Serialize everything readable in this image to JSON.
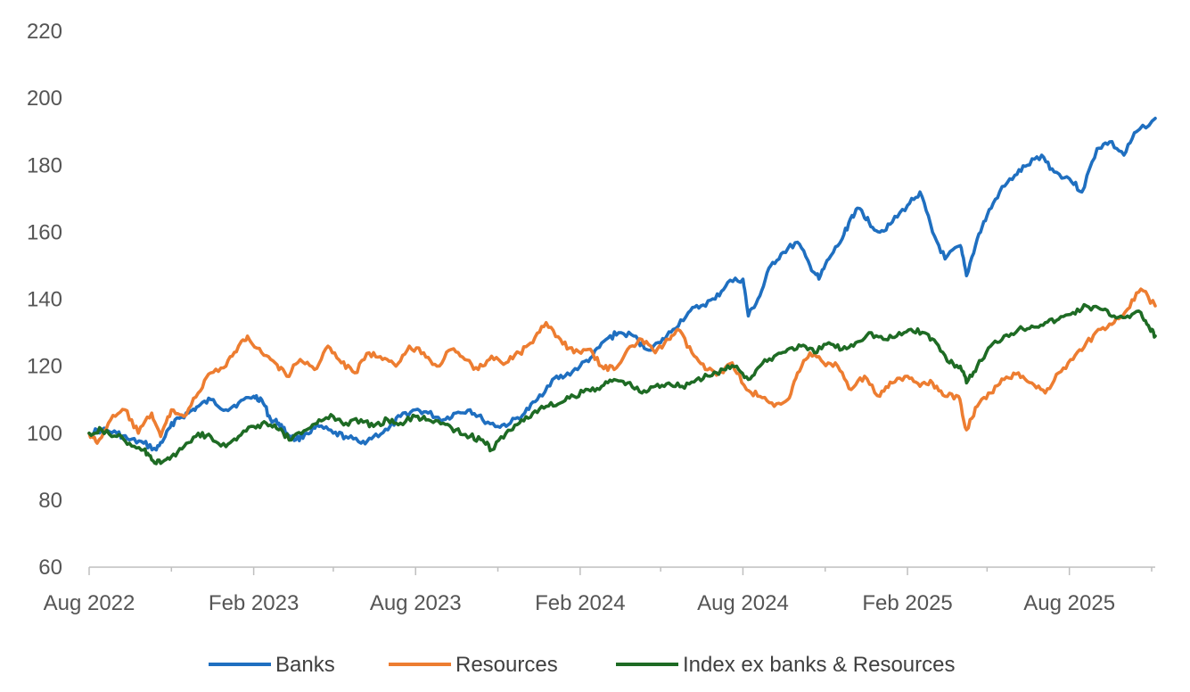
{
  "chart_data": {
    "type": "line",
    "title": "",
    "xlabel": "",
    "ylabel": "",
    "ylim": [
      60,
      220
    ],
    "yticks": [
      60,
      80,
      100,
      120,
      140,
      160,
      180,
      200,
      220
    ],
    "xlim": [
      "2022-08-01",
      "2025-11-05"
    ],
    "xticks": [
      {
        "date": "2022-08-01",
        "label": "Aug 2022"
      },
      {
        "date": "2023-02-01",
        "label": "Feb 2023"
      },
      {
        "date": "2023-08-01",
        "label": "Aug 2023"
      },
      {
        "date": "2024-02-01",
        "label": "Feb 2024"
      },
      {
        "date": "2024-08-01",
        "label": "Aug 2024"
      },
      {
        "date": "2025-02-01",
        "label": "Feb 2025"
      },
      {
        "date": "2025-08-01",
        "label": "Aug 2025"
      }
    ],
    "minor_ticks": [
      "2022-11-01",
      "2023-05-01",
      "2023-11-01",
      "2024-05-01",
      "2024-11-01",
      "2025-05-01",
      "2025-11-01"
    ],
    "grid": false,
    "legend_position": "bottom",
    "series": [
      {
        "name": "Banks",
        "color": "#1f6fc0",
        "points": [
          [
            "2022-08-01",
            100
          ],
          [
            "2022-08-15",
            101
          ],
          [
            "2022-09-01",
            100
          ],
          [
            "2022-09-15",
            98
          ],
          [
            "2022-10-01",
            97
          ],
          [
            "2022-10-15",
            95
          ],
          [
            "2022-10-25",
            99
          ],
          [
            "2022-11-05",
            104
          ],
          [
            "2022-11-20",
            106
          ],
          [
            "2022-12-01",
            108
          ],
          [
            "2022-12-15",
            110
          ],
          [
            "2023-01-01",
            107
          ],
          [
            "2023-01-15",
            109
          ],
          [
            "2023-02-01",
            111
          ],
          [
            "2023-02-10",
            110
          ],
          [
            "2023-02-20",
            104
          ],
          [
            "2023-03-01",
            103
          ],
          [
            "2023-03-10",
            100
          ],
          [
            "2023-03-20",
            98
          ],
          [
            "2023-04-01",
            100
          ],
          [
            "2023-04-15",
            102
          ],
          [
            "2023-05-01",
            100
          ],
          [
            "2023-05-15",
            99
          ],
          [
            "2023-06-01",
            97
          ],
          [
            "2023-06-15",
            99
          ],
          [
            "2023-07-01",
            101
          ],
          [
            "2023-07-15",
            105
          ],
          [
            "2023-08-01",
            107
          ],
          [
            "2023-08-15",
            106
          ],
          [
            "2023-09-01",
            104
          ],
          [
            "2023-09-15",
            106
          ],
          [
            "2023-10-01",
            107
          ],
          [
            "2023-10-15",
            104
          ],
          [
            "2023-11-01",
            102
          ],
          [
            "2023-11-15",
            103
          ],
          [
            "2023-12-01",
            106
          ],
          [
            "2023-12-15",
            110
          ],
          [
            "2024-01-01",
            116
          ],
          [
            "2024-01-15",
            117
          ],
          [
            "2024-02-01",
            120
          ],
          [
            "2024-02-15",
            123
          ],
          [
            "2024-03-01",
            128
          ],
          [
            "2024-03-15",
            130
          ],
          [
            "2024-04-01",
            129
          ],
          [
            "2024-04-15",
            125
          ],
          [
            "2024-05-01",
            127
          ],
          [
            "2024-05-15",
            131
          ],
          [
            "2024-06-01",
            136
          ],
          [
            "2024-06-15",
            138
          ],
          [
            "2024-07-01",
            140
          ],
          [
            "2024-07-15",
            145
          ],
          [
            "2024-08-01",
            146
          ],
          [
            "2024-08-07",
            135
          ],
          [
            "2024-08-20",
            141
          ],
          [
            "2024-09-01",
            150
          ],
          [
            "2024-09-15",
            154
          ],
          [
            "2024-10-01",
            157
          ],
          [
            "2024-10-15",
            150
          ],
          [
            "2024-10-25",
            146
          ],
          [
            "2024-11-05",
            152
          ],
          [
            "2024-11-20",
            158
          ],
          [
            "2024-12-01",
            165
          ],
          [
            "2024-12-10",
            167
          ],
          [
            "2024-12-20",
            163
          ],
          [
            "2025-01-01",
            160
          ],
          [
            "2025-01-15",
            163
          ],
          [
            "2025-02-01",
            168
          ],
          [
            "2025-02-15",
            172
          ],
          [
            "2025-03-01",
            160
          ],
          [
            "2025-03-15",
            152
          ],
          [
            "2025-04-01",
            156
          ],
          [
            "2025-04-08",
            147
          ],
          [
            "2025-04-20",
            158
          ],
          [
            "2025-05-01",
            165
          ],
          [
            "2025-05-15",
            172
          ],
          [
            "2025-06-01",
            177
          ],
          [
            "2025-06-15",
            180
          ],
          [
            "2025-07-01",
            183
          ],
          [
            "2025-07-15",
            178
          ],
          [
            "2025-08-01",
            176
          ],
          [
            "2025-08-15",
            172
          ],
          [
            "2025-09-01",
            185
          ],
          [
            "2025-09-15",
            187
          ],
          [
            "2025-10-01",
            183
          ],
          [
            "2025-10-15",
            190
          ],
          [
            "2025-11-05",
            194
          ]
        ]
      },
      {
        "name": "Resources",
        "color": "#ed7d31",
        "points": [
          [
            "2022-08-01",
            100
          ],
          [
            "2022-08-10",
            97
          ],
          [
            "2022-08-25",
            104
          ],
          [
            "2022-09-10",
            107
          ],
          [
            "2022-09-25",
            100
          ],
          [
            "2022-10-10",
            106
          ],
          [
            "2022-10-20",
            99
          ],
          [
            "2022-11-01",
            107
          ],
          [
            "2022-11-15",
            105
          ],
          [
            "2022-12-01",
            112
          ],
          [
            "2022-12-15",
            118
          ],
          [
            "2023-01-01",
            120
          ],
          [
            "2023-01-15",
            126
          ],
          [
            "2023-01-25",
            129
          ],
          [
            "2023-02-10",
            124
          ],
          [
            "2023-02-25",
            121
          ],
          [
            "2023-03-10",
            117
          ],
          [
            "2023-03-25",
            122
          ],
          [
            "2023-04-10",
            119
          ],
          [
            "2023-04-25",
            126
          ],
          [
            "2023-05-10",
            121
          ],
          [
            "2023-05-25",
            118
          ],
          [
            "2023-06-10",
            124
          ],
          [
            "2023-06-25",
            122
          ],
          [
            "2023-07-10",
            120
          ],
          [
            "2023-07-25",
            126
          ],
          [
            "2023-08-10",
            124
          ],
          [
            "2023-08-25",
            120
          ],
          [
            "2023-09-10",
            125
          ],
          [
            "2023-09-25",
            122
          ],
          [
            "2023-10-10",
            119
          ],
          [
            "2023-10-25",
            123
          ],
          [
            "2023-11-10",
            121
          ],
          [
            "2023-11-25",
            124
          ],
          [
            "2023-12-10",
            127
          ],
          [
            "2023-12-25",
            133
          ],
          [
            "2024-01-10",
            128
          ],
          [
            "2024-01-25",
            124
          ],
          [
            "2024-02-10",
            125
          ],
          [
            "2024-02-25",
            120
          ],
          [
            "2024-03-10",
            119
          ],
          [
            "2024-03-25",
            125
          ],
          [
            "2024-04-10",
            128
          ],
          [
            "2024-04-25",
            124
          ],
          [
            "2024-05-10",
            128
          ],
          [
            "2024-05-20",
            131
          ],
          [
            "2024-06-05",
            124
          ],
          [
            "2024-06-20",
            119
          ],
          [
            "2024-07-05",
            118
          ],
          [
            "2024-07-20",
            121
          ],
          [
            "2024-08-05",
            113
          ],
          [
            "2024-08-20",
            111
          ],
          [
            "2024-09-05",
            108
          ],
          [
            "2024-09-20",
            110
          ],
          [
            "2024-10-01",
            118
          ],
          [
            "2024-10-15",
            124
          ],
          [
            "2024-10-30",
            121
          ],
          [
            "2024-11-15",
            120
          ],
          [
            "2024-11-30",
            113
          ],
          [
            "2024-12-15",
            117
          ],
          [
            "2025-01-01",
            111
          ],
          [
            "2025-01-15",
            115
          ],
          [
            "2025-02-01",
            117
          ],
          [
            "2025-02-15",
            114
          ],
          [
            "2025-03-01",
            115
          ],
          [
            "2025-03-15",
            111
          ],
          [
            "2025-03-30",
            111
          ],
          [
            "2025-04-08",
            101
          ],
          [
            "2025-04-20",
            108
          ],
          [
            "2025-05-05",
            112
          ],
          [
            "2025-05-20",
            116
          ],
          [
            "2025-06-05",
            118
          ],
          [
            "2025-06-20",
            115
          ],
          [
            "2025-07-05",
            112
          ],
          [
            "2025-07-20",
            118
          ],
          [
            "2025-08-05",
            122
          ],
          [
            "2025-08-20",
            127
          ],
          [
            "2025-09-05",
            131
          ],
          [
            "2025-09-20",
            133
          ],
          [
            "2025-10-05",
            137
          ],
          [
            "2025-10-20",
            143
          ],
          [
            "2025-11-05",
            138
          ]
        ]
      },
      {
        "name": "Index ex banks & Resources",
        "color": "#1e6b24",
        "points": [
          [
            "2022-08-01",
            100
          ],
          [
            "2022-08-15",
            101
          ],
          [
            "2022-09-01",
            99
          ],
          [
            "2022-09-15",
            97
          ],
          [
            "2022-10-01",
            95
          ],
          [
            "2022-10-10",
            92
          ],
          [
            "2022-10-20",
            91
          ],
          [
            "2022-11-01",
            93
          ],
          [
            "2022-11-15",
            96
          ],
          [
            "2022-12-01",
            100
          ],
          [
            "2022-12-15",
            99
          ],
          [
            "2023-01-01",
            96
          ],
          [
            "2023-01-15",
            99
          ],
          [
            "2023-02-01",
            102
          ],
          [
            "2023-02-15",
            103
          ],
          [
            "2023-03-01",
            101
          ],
          [
            "2023-03-15",
            98
          ],
          [
            "2023-04-01",
            101
          ],
          [
            "2023-04-15",
            104
          ],
          [
            "2023-05-01",
            105
          ],
          [
            "2023-05-15",
            103
          ],
          [
            "2023-06-01",
            104
          ],
          [
            "2023-06-15",
            102
          ],
          [
            "2023-07-01",
            104
          ],
          [
            "2023-07-15",
            103
          ],
          [
            "2023-08-01",
            105
          ],
          [
            "2023-08-15",
            104
          ],
          [
            "2023-09-01",
            103
          ],
          [
            "2023-09-15",
            101
          ],
          [
            "2023-10-01",
            99
          ],
          [
            "2023-10-15",
            98
          ],
          [
            "2023-10-25",
            95
          ],
          [
            "2023-11-10",
            100
          ],
          [
            "2023-11-25",
            103
          ],
          [
            "2023-12-10",
            106
          ],
          [
            "2023-12-25",
            108
          ],
          [
            "2024-01-10",
            109
          ],
          [
            "2024-01-25",
            111
          ],
          [
            "2024-02-10",
            113
          ],
          [
            "2024-02-25",
            114
          ],
          [
            "2024-03-10",
            116
          ],
          [
            "2024-03-25",
            115
          ],
          [
            "2024-04-10",
            112
          ],
          [
            "2024-04-25",
            114
          ],
          [
            "2024-05-10",
            115
          ],
          [
            "2024-05-25",
            114
          ],
          [
            "2024-06-10",
            116
          ],
          [
            "2024-06-25",
            117
          ],
          [
            "2024-07-10",
            119
          ],
          [
            "2024-07-25",
            120
          ],
          [
            "2024-08-07",
            116
          ],
          [
            "2024-08-20",
            120
          ],
          [
            "2024-09-05",
            123
          ],
          [
            "2024-09-20",
            125
          ],
          [
            "2024-10-05",
            126
          ],
          [
            "2024-10-20",
            124
          ],
          [
            "2024-11-05",
            127
          ],
          [
            "2024-11-20",
            125
          ],
          [
            "2024-12-05",
            127
          ],
          [
            "2024-12-20",
            130
          ],
          [
            "2025-01-05",
            128
          ],
          [
            "2025-01-20",
            129
          ],
          [
            "2025-02-05",
            131
          ],
          [
            "2025-02-20",
            130
          ],
          [
            "2025-03-05",
            127
          ],
          [
            "2025-03-20",
            121
          ],
          [
            "2025-04-01",
            120
          ],
          [
            "2025-04-08",
            115
          ],
          [
            "2025-04-20",
            120
          ],
          [
            "2025-05-05",
            126
          ],
          [
            "2025-05-20",
            129
          ],
          [
            "2025-06-05",
            131
          ],
          [
            "2025-06-20",
            132
          ],
          [
            "2025-07-05",
            133
          ],
          [
            "2025-07-20",
            134
          ],
          [
            "2025-08-05",
            136
          ],
          [
            "2025-08-20",
            138
          ],
          [
            "2025-09-05",
            137
          ],
          [
            "2025-09-20",
            135
          ],
          [
            "2025-10-05",
            135
          ],
          [
            "2025-10-20",
            136
          ],
          [
            "2025-10-30",
            131
          ],
          [
            "2025-11-05",
            129
          ]
        ]
      }
    ]
  }
}
